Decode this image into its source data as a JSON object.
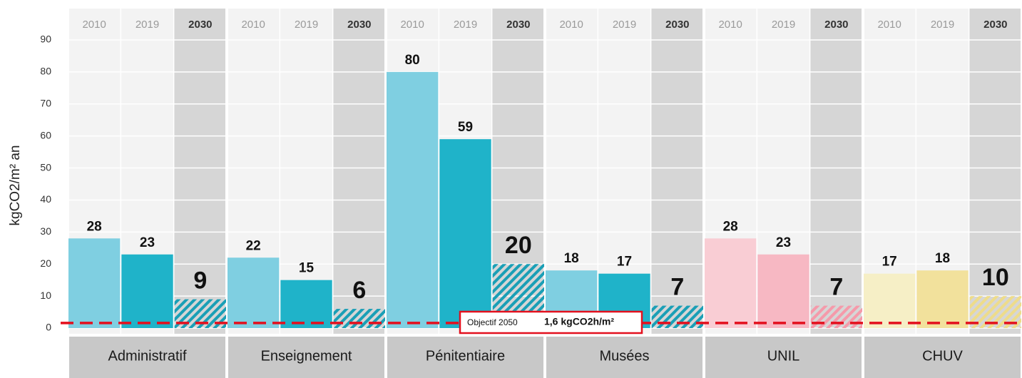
{
  "chart_data": {
    "type": "bar",
    "ylabel": "kgCO2/m² an",
    "categories": [
      "Administratif",
      "Enseignement",
      "Pénitentiaire",
      "Musées",
      "UNIL",
      "CHUV"
    ],
    "series": [
      {
        "name": "2010",
        "colors": [
          "#7fcfe1",
          "#7fcfe1",
          "#7fcfe1",
          "#7fcfe1",
          "#f9cdd4",
          "#f6efc6"
        ],
        "values": [
          28,
          22,
          80,
          18,
          28,
          17
        ]
      },
      {
        "name": "2019",
        "colors": [
          "#1fb3c9",
          "#1fb3c9",
          "#1fb3c9",
          "#1fb3c9",
          "#f7b8c3",
          "#f2e19c"
        ],
        "values": [
          23,
          15,
          59,
          17,
          23,
          18
        ]
      },
      {
        "name": "2030",
        "colors": [
          "#1a9fb6",
          "#1a9fb6",
          "#1a9fb6",
          "#1a9fb6",
          "#f59aaa",
          "#eedc8a"
        ],
        "hatched": true,
        "values": [
          9,
          6,
          20,
          7,
          7,
          10
        ]
      }
    ],
    "ylim": [
      0,
      90
    ],
    "yticks": [
      0,
      10,
      20,
      30,
      40,
      50,
      60,
      70,
      80,
      90
    ],
    "grid": true,
    "target": {
      "value": 1.6,
      "label": "Objectif 2050",
      "value_label": "1,6 kgCO2h/m²",
      "color": "#e3101e"
    }
  }
}
